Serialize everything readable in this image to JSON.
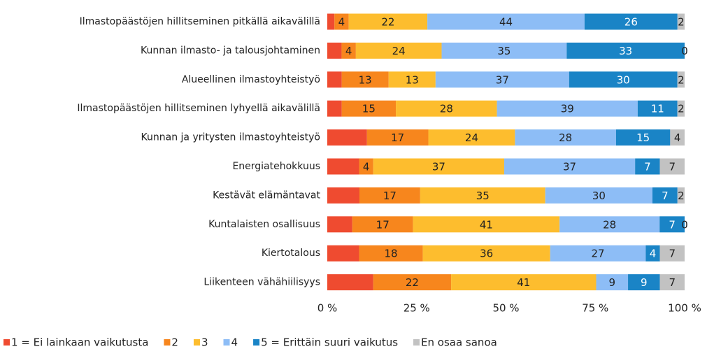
{
  "chart_data": {
    "type": "stacked_bar_horizontal_percent",
    "categories": [
      "Ilmastopäästöjen hillitseminen pitkällä aikavälillä",
      "Kunnan ilmasto- ja talousjohtaminen",
      "Alueellinen ilmastoyhteistyö",
      "Ilmastopäästöjen hillitseminen lyhyellä aikavälillä",
      "Kunnan ja yritysten ilmastoyhteistyö",
      "Energiatehokkuus",
      "Kestävät elämäntavat",
      "Kuntalaisten osallisuus",
      "Kiertotalous",
      "Liikenteen vähähiilisyys"
    ],
    "series": [
      {
        "name": "1 = Ei lainkaan vaikutusta",
        "color": "#ef4b30",
        "values": [
          2,
          4,
          4,
          4,
          11,
          9,
          9,
          7,
          9,
          13
        ],
        "labels": false
      },
      {
        "name": "2",
        "color": "#f7861d",
        "values": [
          4,
          4,
          13,
          15,
          17,
          4,
          17,
          17,
          18,
          22
        ],
        "labels": true
      },
      {
        "name": "3",
        "color": "#fdbd2e",
        "values": [
          22,
          24,
          13,
          28,
          24,
          37,
          35,
          41,
          36,
          41
        ],
        "labels": true
      },
      {
        "name": "4",
        "color": "#8dbdf6",
        "values": [
          44,
          35,
          37,
          39,
          28,
          37,
          30,
          28,
          27,
          9
        ],
        "labels": true
      },
      {
        "name": "5 = Erittäin suuri vaikutus",
        "color": "#1a84c6",
        "values": [
          26,
          33,
          30,
          11,
          15,
          7,
          7,
          7,
          4,
          9
        ],
        "labels": true
      },
      {
        "name": "En osaa sanoa",
        "color": "#c2c2c2",
        "values": [
          2,
          0,
          2,
          2,
          4,
          7,
          2,
          0,
          7,
          7
        ],
        "labels": true
      }
    ],
    "xlim": [
      0,
      100
    ],
    "xticks": [
      {
        "value": 0,
        "label": "0 %"
      },
      {
        "value": 25,
        "label": "25 %"
      },
      {
        "value": 50,
        "label": "50 %"
      },
      {
        "value": 75,
        "label": "75 %"
      },
      {
        "value": 100,
        "label": "100 %"
      }
    ],
    "legend": "bottom"
  }
}
